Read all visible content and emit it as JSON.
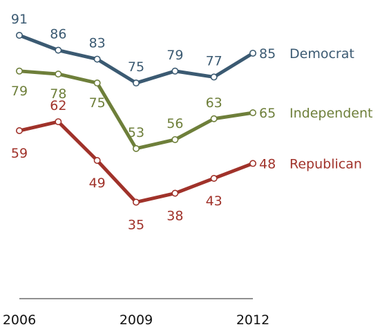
{
  "chart_data": {
    "type": "line",
    "x": [
      2006,
      2007,
      2008,
      2009,
      2010,
      2011,
      2012
    ],
    "xticks": [
      "2006",
      "2009",
      "2012"
    ],
    "ylim": [
      0,
      100
    ],
    "series": [
      {
        "name": "Democrat",
        "color": "#3b5a72",
        "values": [
          91,
          86,
          83,
          75,
          79,
          77,
          85
        ],
        "labels": [
          "91",
          "86",
          "83",
          "75",
          "79",
          "77",
          "85"
        ]
      },
      {
        "name": "Independent",
        "color": "#6e7f3a",
        "values": [
          79,
          78,
          75,
          53,
          56,
          63,
          65
        ],
        "labels": [
          "79",
          "78",
          "75",
          "53",
          "56",
          "63",
          "65"
        ]
      },
      {
        "name": "Republican",
        "color": "#a0322a",
        "values": [
          59,
          62,
          49,
          35,
          38,
          43,
          48
        ],
        "labels": [
          "59",
          "62",
          "49",
          "35",
          "38",
          "43",
          "48"
        ]
      }
    ]
  }
}
